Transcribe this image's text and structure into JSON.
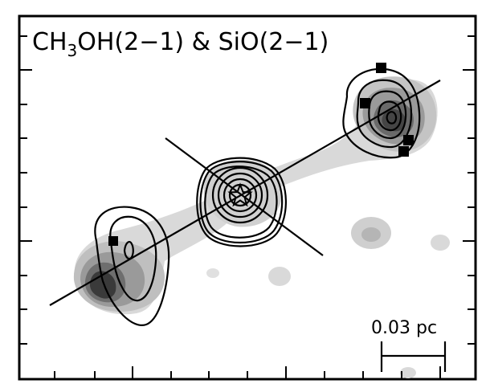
{
  "title": {
    "prefix": "CH",
    "sub": "3",
    "suffix": "OH(2−1) & SiO(2−1)"
  },
  "scale_bar": {
    "label": "0.03 pc"
  },
  "colors": {
    "frame": "#000000",
    "grayscale_light": "#d9d9d9",
    "grayscale_mid": "#a6a6a6",
    "grayscale_dark": "#3a3a3a",
    "contour": "#000000",
    "marker": "#000000"
  },
  "symbols": {
    "center_marker": "star-icon",
    "position_markers": "square-marker"
  }
}
